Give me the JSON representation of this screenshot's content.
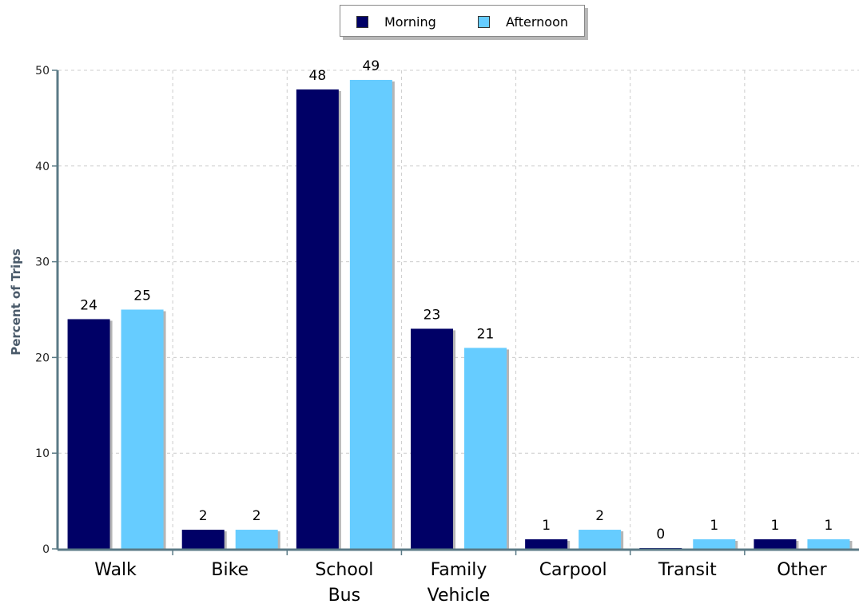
{
  "chart_data": {
    "type": "bar",
    "categories": [
      "Walk",
      "Bike",
      "School Bus",
      "Family Vehicle",
      "Carpool",
      "Transit",
      "Other"
    ],
    "category_lines": [
      [
        "Walk"
      ],
      [
        "Bike"
      ],
      [
        "School",
        "Bus"
      ],
      [
        "Family",
        "Vehicle"
      ],
      [
        "Carpool"
      ],
      [
        "Transit"
      ],
      [
        "Other"
      ]
    ],
    "series": [
      {
        "name": "Morning",
        "color": "#000066",
        "values": [
          24,
          2,
          48,
          23,
          1,
          0,
          1
        ]
      },
      {
        "name": "Afternoon",
        "color": "#66ccff",
        "values": [
          25,
          2,
          49,
          21,
          2,
          1,
          1
        ]
      }
    ],
    "xlabel": "",
    "ylabel": "Percent of Trips",
    "ylim": [
      0,
      50
    ],
    "yticks": [
      0,
      10,
      20,
      30,
      40,
      50
    ],
    "grid": true,
    "legend_position": "top-center"
  },
  "legend": {
    "items": [
      {
        "label": "Morning",
        "color": "#000066"
      },
      {
        "label": "Afternoon",
        "color": "#66ccff"
      }
    ]
  }
}
